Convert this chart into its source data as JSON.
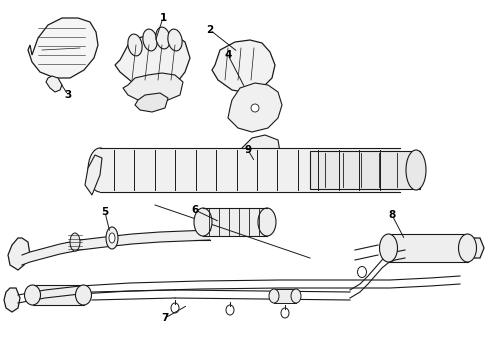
{
  "background_color": "#ffffff",
  "line_color": "#1a1a1a",
  "label_color": "#000000",
  "figsize": [
    4.9,
    3.6
  ],
  "dpi": 100,
  "xlim": [
    0,
    490
  ],
  "ylim": [
    0,
    360
  ]
}
